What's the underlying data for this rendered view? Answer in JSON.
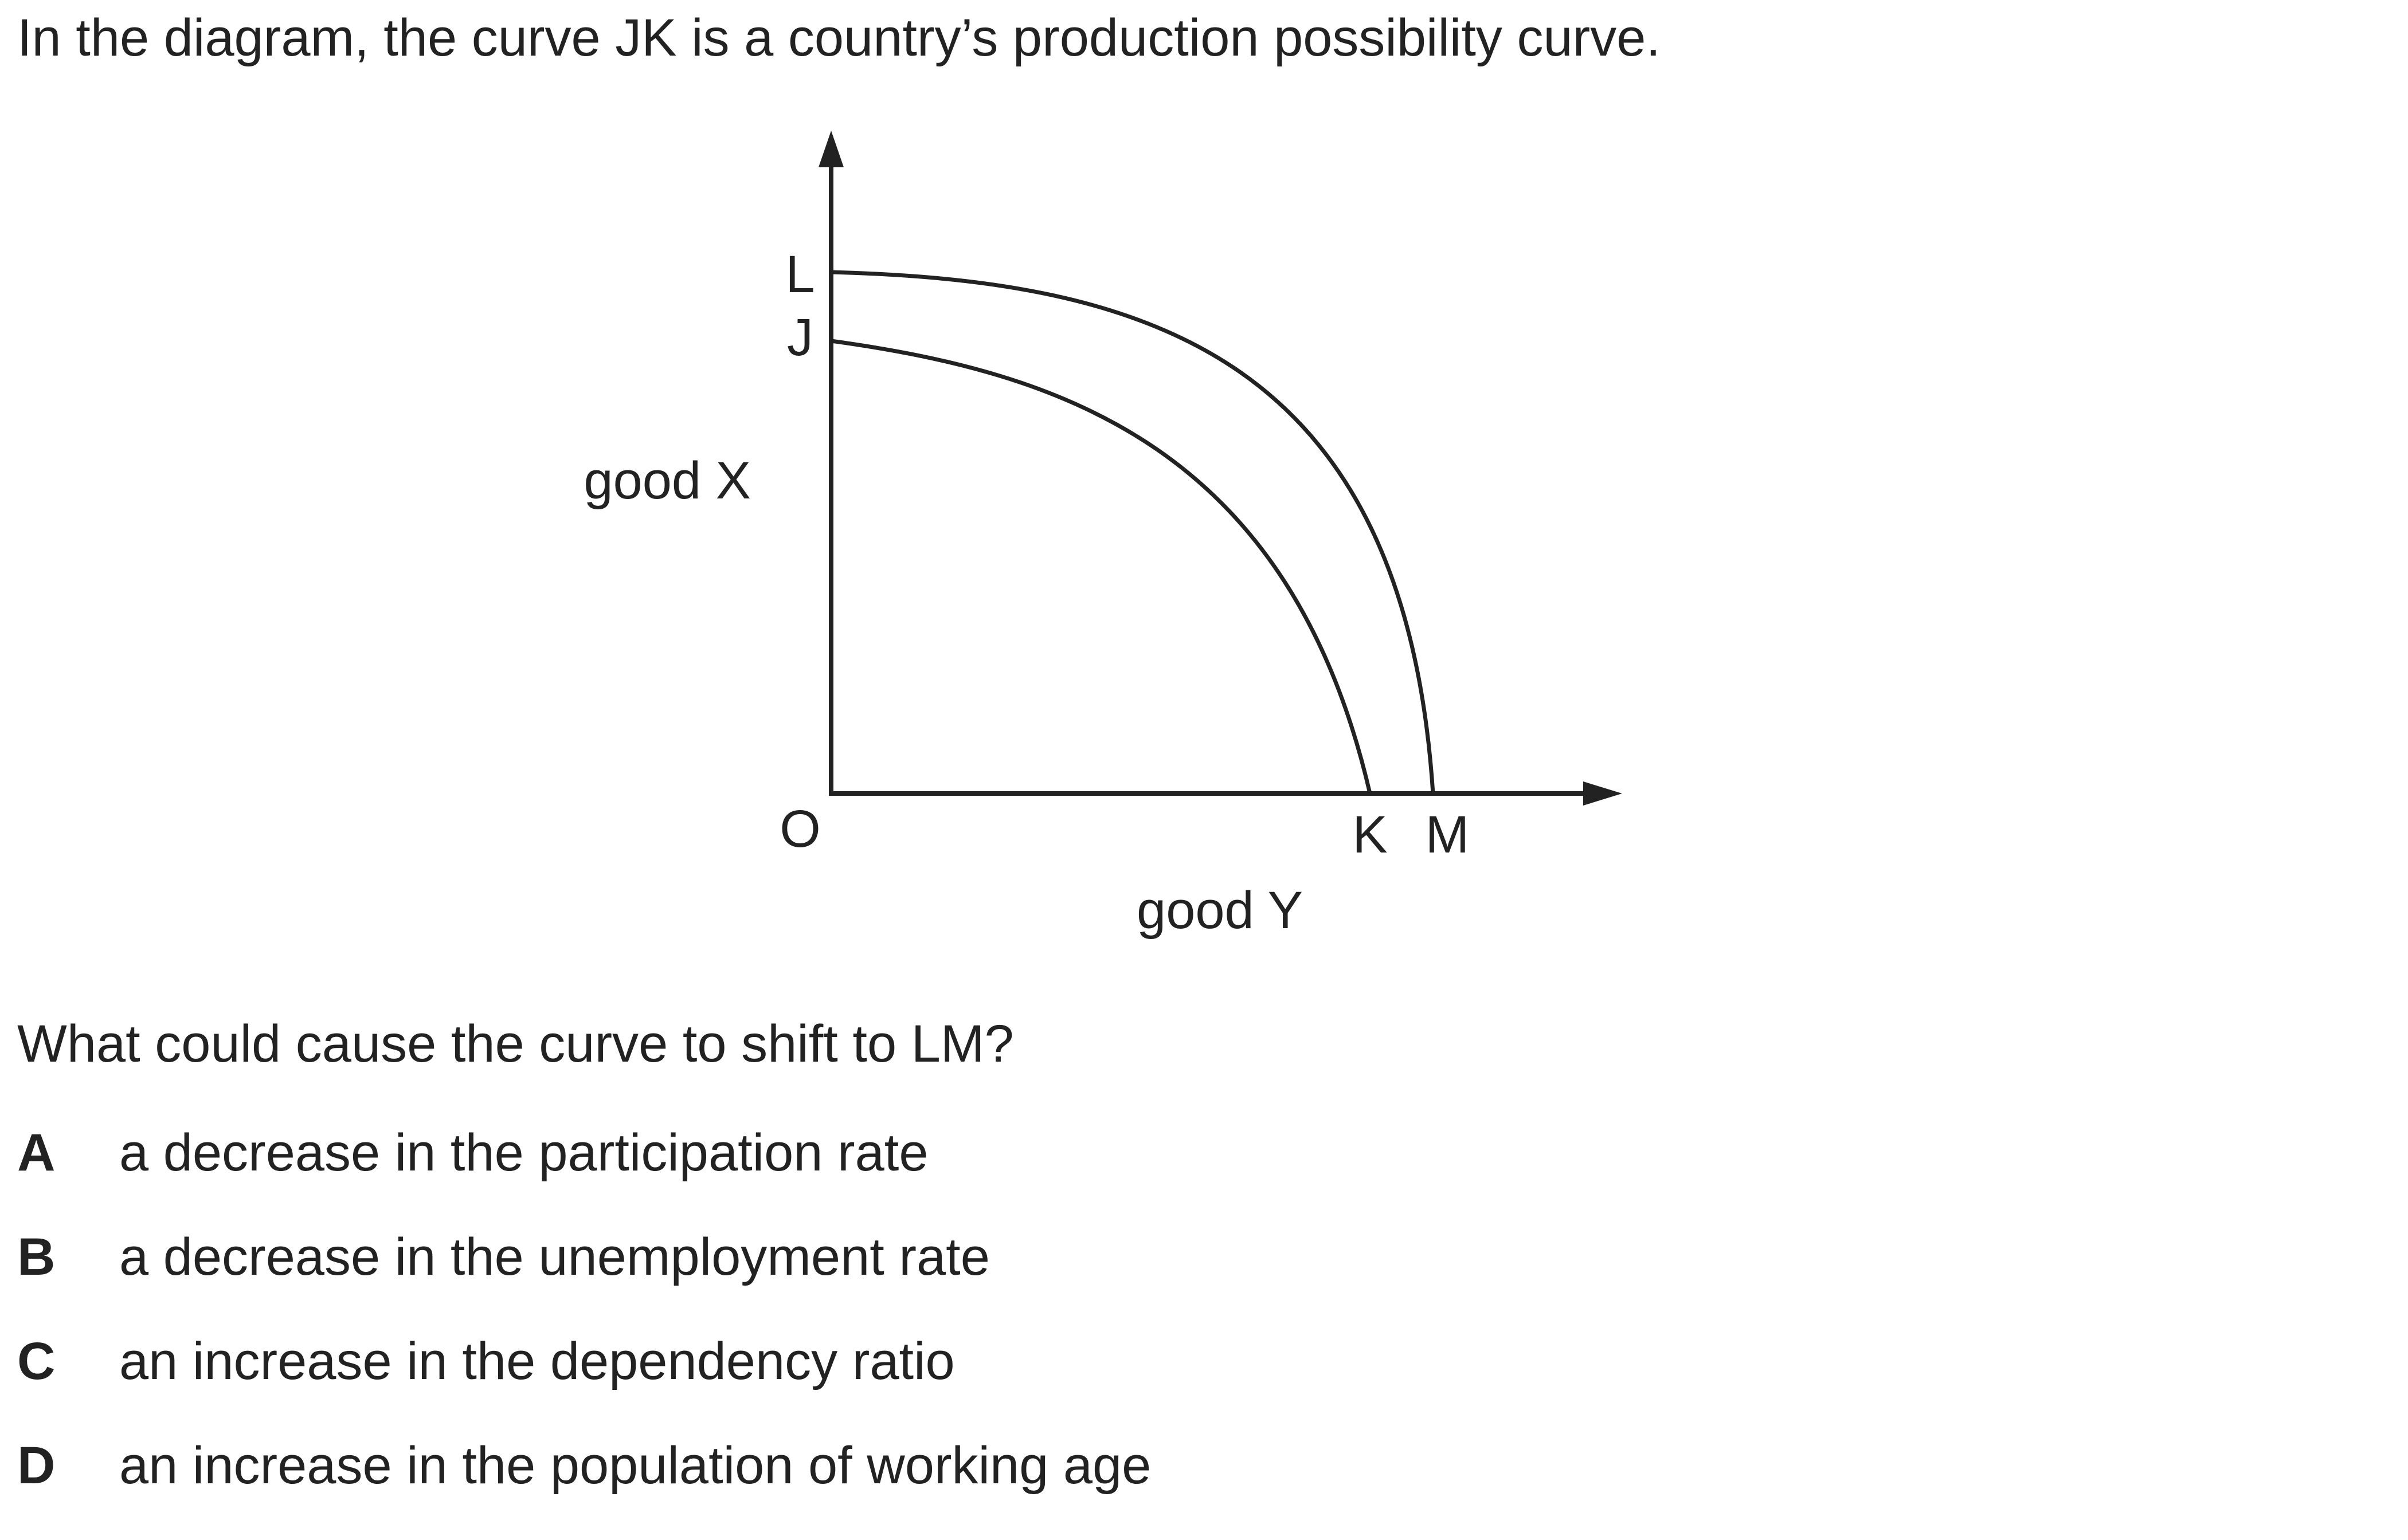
{
  "intro": "In the diagram, the curve JK is a country’s production possibility curve.",
  "diagram": {
    "y_axis_label": "good X",
    "x_axis_label": "good Y",
    "origin_label": "O",
    "point_labels": {
      "L": "L",
      "J": "J",
      "K": "K",
      "M": "M"
    }
  },
  "question": "What could cause the curve to shift to LM?",
  "options": [
    {
      "letter": "A",
      "text": "a decrease in the participation rate"
    },
    {
      "letter": "B",
      "text": "a decrease in the unemployment rate"
    },
    {
      "letter": "C",
      "text": "an increase in the dependency ratio"
    },
    {
      "letter": "D",
      "text": "an increase in the population of working age"
    }
  ],
  "colors": {
    "ink": "#222222",
    "background": "#ffffff"
  }
}
